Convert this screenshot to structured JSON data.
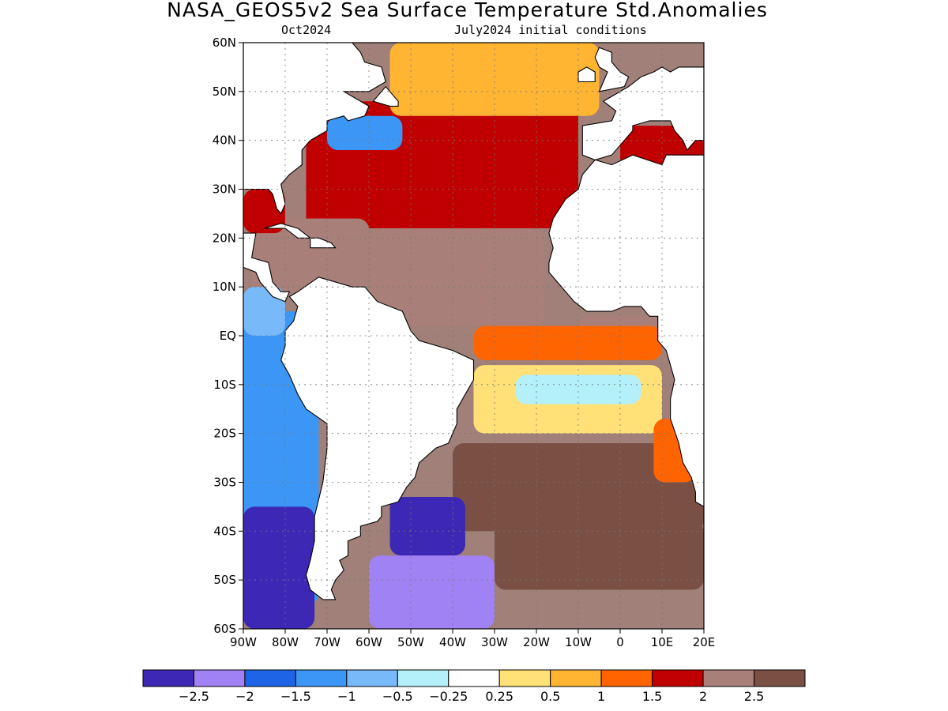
{
  "title": "NASA_GEOS5v2 Sea Surface Temperature Std.Anomalies",
  "subtitle_left": "Oct2024",
  "subtitle_right": "July2024 initial conditions",
  "map": {
    "lon_range": [
      -90,
      20
    ],
    "lat_range": [
      -60,
      60
    ],
    "grid": true,
    "lat_ticks": [
      {
        "value": 60,
        "label": "60N"
      },
      {
        "value": 50,
        "label": "50N"
      },
      {
        "value": 40,
        "label": "40N"
      },
      {
        "value": 30,
        "label": "30N"
      },
      {
        "value": 20,
        "label": "20N"
      },
      {
        "value": 10,
        "label": "10N"
      },
      {
        "value": 0,
        "label": "EQ"
      },
      {
        "value": -10,
        "label": "10S"
      },
      {
        "value": -20,
        "label": "20S"
      },
      {
        "value": -30,
        "label": "30S"
      },
      {
        "value": -40,
        "label": "40S"
      },
      {
        "value": -50,
        "label": "50S"
      },
      {
        "value": -60,
        "label": "60S"
      }
    ],
    "lon_ticks": [
      {
        "value": -90,
        "label": "90W"
      },
      {
        "value": -80,
        "label": "80W"
      },
      {
        "value": -70,
        "label": "70W"
      },
      {
        "value": -60,
        "label": "60W"
      },
      {
        "value": -50,
        "label": "50W"
      },
      {
        "value": -40,
        "label": "40W"
      },
      {
        "value": -30,
        "label": "30W"
      },
      {
        "value": -20,
        "label": "20W"
      },
      {
        "value": -10,
        "label": "10W"
      },
      {
        "value": 0,
        "label": "0"
      },
      {
        "value": 10,
        "label": "10E"
      },
      {
        "value": 20,
        "label": "20E"
      }
    ]
  },
  "colorbar": {
    "colors": [
      "#3c28b4",
      "#a082f5",
      "#1e64e6",
      "#3c96f5",
      "#78b9fa",
      "#b4f0fa",
      "#ffffff",
      "#ffe178",
      "#ffb432",
      "#ff6400",
      "#c00000",
      "#a88079",
      "#7a4f44"
    ],
    "labels": [
      "-2.5",
      "-2",
      "-1.5",
      "-1",
      "-0.5",
      "-0.25",
      "0.25",
      "0.5",
      "1",
      "1.5",
      "2",
      "2.5"
    ]
  },
  "regions": [
    {
      "name": "north-atlantic-warm",
      "lon": [
        -75,
        -10
      ],
      "lat": [
        22,
        48
      ],
      "level": 11
    },
    {
      "name": "tropical-north-atlantic",
      "lon": [
        -60,
        -18
      ],
      "lat": [
        2,
        22
      ],
      "level": 12
    },
    {
      "name": "caribbean",
      "lon": [
        -88,
        -60
      ],
      "lat": [
        9,
        24
      ],
      "level": 12
    },
    {
      "name": "gulf-of-mexico",
      "lon": [
        -90,
        -80
      ],
      "lat": [
        21,
        30
      ],
      "level": 11
    },
    {
      "name": "subpolar-north-atlantic",
      "lon": [
        -55,
        -5
      ],
      "lat": [
        45,
        60
      ],
      "level": 9
    },
    {
      "name": "northwest-coastal-cool",
      "lon": [
        -70,
        -52
      ],
      "lat": [
        38,
        45
      ],
      "level": 4
    },
    {
      "name": "gulf-of-guinea",
      "lon": [
        -10,
        10
      ],
      "lat": [
        -3,
        4
      ],
      "level": 12
    },
    {
      "name": "equatorial-atlantic",
      "lon": [
        -35,
        10
      ],
      "lat": [
        -5,
        2
      ],
      "level": 10
    },
    {
      "name": "south-atlantic-tropical",
      "lon": [
        -35,
        10
      ],
      "lat": [
        -20,
        -6
      ],
      "level": 8
    },
    {
      "name": "south-atlantic-cool-band",
      "lon": [
        -25,
        5
      ],
      "lat": [
        -14,
        -8
      ],
      "level": 6
    },
    {
      "name": "south-atlantic-midlat",
      "lon": [
        -40,
        20
      ],
      "lat": [
        -40,
        -22
      ],
      "level": 13
    },
    {
      "name": "southern-ocean-mix",
      "lon": [
        -30,
        20
      ],
      "lat": [
        -52,
        -38
      ],
      "level": 13
    },
    {
      "name": "argentine-shelf-cold",
      "lon": [
        -55,
        -37
      ],
      "lat": [
        -45,
        -33
      ],
      "level": 1
    },
    {
      "name": "southwest-atlantic-cold",
      "lon": [
        -60,
        -30
      ],
      "lat": [
        -60,
        -45
      ],
      "level": 2
    },
    {
      "name": "east-pacific-cool",
      "lon": [
        -90,
        -72
      ],
      "lat": [
        -55,
        5
      ],
      "level": 4
    },
    {
      "name": "east-pacific-cold-south",
      "lon": [
        -90,
        -73
      ],
      "lat": [
        -60,
        -35
      ],
      "level": 1
    },
    {
      "name": "east-pacific-tropic",
      "lon": [
        -90,
        -80
      ],
      "lat": [
        0,
        10
      ],
      "level": 5
    },
    {
      "name": "mediterranean",
      "lon": [
        0,
        20
      ],
      "lat": [
        33,
        43
      ],
      "level": 11
    },
    {
      "name": "benguela",
      "lon": [
        8,
        18
      ],
      "lat": [
        -30,
        -17
      ],
      "level": 10
    }
  ],
  "continents": [
    {
      "name": "south-america",
      "lonlat": [
        [
          -79,
          8
        ],
        [
          -77,
          9
        ],
        [
          -72,
          12
        ],
        [
          -64,
          10
        ],
        [
          -61,
          10
        ],
        [
          -58,
          7
        ],
        [
          -52,
          5
        ],
        [
          -50,
          1
        ],
        [
          -48,
          -1
        ],
        [
          -44,
          -2
        ],
        [
          -40,
          -3
        ],
        [
          -35,
          -5
        ],
        [
          -35,
          -9
        ],
        [
          -37,
          -12
        ],
        [
          -39,
          -15
        ],
        [
          -39,
          -18
        ],
        [
          -41,
          -22
        ],
        [
          -44,
          -23
        ],
        [
          -48,
          -26
        ],
        [
          -49,
          -29
        ],
        [
          -51,
          -31
        ],
        [
          -53,
          -34
        ],
        [
          -57,
          -35
        ],
        [
          -57,
          -37
        ],
        [
          -58,
          -38
        ],
        [
          -62,
          -39
        ],
        [
          -62,
          -41
        ],
        [
          -65,
          -42
        ],
        [
          -65,
          -45
        ],
        [
          -67,
          -46
        ],
        [
          -66,
          -48
        ],
        [
          -68,
          -50
        ],
        [
          -69,
          -52
        ],
        [
          -68,
          -54
        ],
        [
          -71,
          -54
        ],
        [
          -74,
          -52
        ],
        [
          -75,
          -49
        ],
        [
          -74,
          -46
        ],
        [
          -73,
          -42
        ],
        [
          -73,
          -37
        ],
        [
          -71,
          -30
        ],
        [
          -70,
          -23
        ],
        [
          -70,
          -18
        ],
        [
          -75,
          -15
        ],
        [
          -77,
          -12
        ],
        [
          -79,
          -8
        ],
        [
          -81,
          -5
        ],
        [
          -80,
          -2
        ],
        [
          -80,
          1
        ],
        [
          -78,
          3
        ],
        [
          -77,
          6
        ]
      ]
    },
    {
      "name": "north-america",
      "lonlat": [
        [
          -90,
          30
        ],
        [
          -89,
          30
        ],
        [
          -84,
          30
        ],
        [
          -83,
          29
        ],
        [
          -82,
          26
        ],
        [
          -81,
          25
        ],
        [
          -80,
          27
        ],
        [
          -81,
          31
        ],
        [
          -79,
          33
        ],
        [
          -76,
          35
        ],
        [
          -76,
          38
        ],
        [
          -74,
          40
        ],
        [
          -70,
          42
        ],
        [
          -70,
          44
        ],
        [
          -66,
          45
        ],
        [
          -65,
          44
        ],
        [
          -61,
          45
        ],
        [
          -60,
          47
        ],
        [
          -64,
          49
        ],
        [
          -66,
          50
        ],
        [
          -60,
          50
        ],
        [
          -56,
          52
        ],
        [
          -57,
          55
        ],
        [
          -61,
          56
        ],
        [
          -62,
          58
        ],
        [
          -64,
          60
        ],
        [
          -90,
          60
        ]
      ]
    },
    {
      "name": "central-america",
      "lonlat": [
        [
          -90,
          21
        ],
        [
          -87,
          21
        ],
        [
          -88,
          16
        ],
        [
          -84,
          15
        ],
        [
          -83,
          11
        ],
        [
          -81,
          9
        ],
        [
          -79,
          9
        ],
        [
          -80,
          7
        ],
        [
          -83,
          8
        ],
        [
          -86,
          11
        ],
        [
          -87,
          13
        ],
        [
          -90,
          14
        ]
      ]
    },
    {
      "name": "cuba",
      "lonlat": [
        [
          -85,
          22
        ],
        [
          -81,
          23
        ],
        [
          -77,
          22
        ],
        [
          -74,
          20
        ],
        [
          -77,
          20
        ],
        [
          -80,
          22
        ],
        [
          -84,
          22
        ]
      ]
    },
    {
      "name": "hispaniola",
      "lonlat": [
        [
          -74,
          20
        ],
        [
          -72,
          20
        ],
        [
          -69,
          19
        ],
        [
          -68,
          18
        ],
        [
          -72,
          18
        ],
        [
          -74,
          18
        ]
      ]
    },
    {
      "name": "newfoundland",
      "lonlat": [
        [
          -59,
          48
        ],
        [
          -56,
          51
        ],
        [
          -55,
          50
        ],
        [
          -53,
          48
        ],
        [
          -53,
          47
        ],
        [
          -55,
          47
        ]
      ]
    },
    {
      "name": "africa",
      "lonlat": [
        [
          -6,
          36
        ],
        [
          -9,
          33
        ],
        [
          -10,
          30
        ],
        [
          -13,
          28
        ],
        [
          -16,
          24
        ],
        [
          -17,
          21
        ],
        [
          -16,
          18
        ],
        [
          -17,
          15
        ],
        [
          -17,
          13
        ],
        [
          -15,
          11
        ],
        [
          -13,
          9
        ],
        [
          -11,
          7
        ],
        [
          -8,
          5
        ],
        [
          -5,
          5
        ],
        [
          -2,
          5
        ],
        [
          1,
          6
        ],
        [
          5,
          6
        ],
        [
          7,
          4
        ],
        [
          9,
          4
        ],
        [
          9,
          2
        ],
        [
          9,
          -1
        ],
        [
          11,
          -3
        ],
        [
          12,
          -6
        ],
        [
          13,
          -9
        ],
        [
          12,
          -13
        ],
        [
          12,
          -17
        ],
        [
          14,
          -22
        ],
        [
          15,
          -26
        ],
        [
          17,
          -29
        ],
        [
          18,
          -32
        ],
        [
          18,
          -34
        ],
        [
          20,
          -35
        ],
        [
          20,
          37
        ],
        [
          11,
          37
        ],
        [
          10,
          35
        ],
        [
          3,
          37
        ],
        [
          -2,
          35
        ]
      ]
    },
    {
      "name": "europe",
      "lonlat": [
        [
          -9,
          37
        ],
        [
          -9,
          43
        ],
        [
          -2,
          44
        ],
        [
          -1,
          46
        ],
        [
          -4,
          48
        ],
        [
          -2,
          49
        ],
        [
          2,
          51
        ],
        [
          5,
          53
        ],
        [
          8,
          54
        ],
        [
          10,
          55
        ],
        [
          12,
          54
        ],
        [
          14,
          55
        ],
        [
          20,
          55
        ],
        [
          20,
          40
        ],
        [
          18,
          40
        ],
        [
          16,
          38
        ],
        [
          15,
          40
        ],
        [
          13,
          42
        ],
        [
          12,
          44
        ],
        [
          9,
          44
        ],
        [
          7,
          44
        ],
        [
          3,
          43
        ],
        [
          3,
          42
        ],
        [
          0,
          39
        ],
        [
          -2,
          37
        ],
        [
          -6,
          36
        ]
      ]
    },
    {
      "name": "great-britain",
      "lonlat": [
        [
          -5,
          50
        ],
        [
          1,
          51
        ],
        [
          2,
          53
        ],
        [
          0,
          54
        ],
        [
          -2,
          56
        ],
        [
          -2,
          58
        ],
        [
          -5,
          59
        ],
        [
          -6,
          57
        ],
        [
          -5,
          55
        ],
        [
          -3,
          54
        ],
        [
          -4,
          52
        ]
      ]
    },
    {
      "name": "ireland",
      "lonlat": [
        [
          -10,
          52
        ],
        [
          -6,
          52
        ],
        [
          -6,
          54
        ],
        [
          -8,
          55
        ],
        [
          -10,
          54
        ]
      ]
    },
    {
      "name": "iceland",
      "lonlat": [
        [
          -24,
          64
        ],
        [
          -14,
          65
        ],
        [
          -13,
          64
        ],
        [
          -19,
          63
        ],
        [
          -24,
          63
        ]
      ]
    }
  ]
}
